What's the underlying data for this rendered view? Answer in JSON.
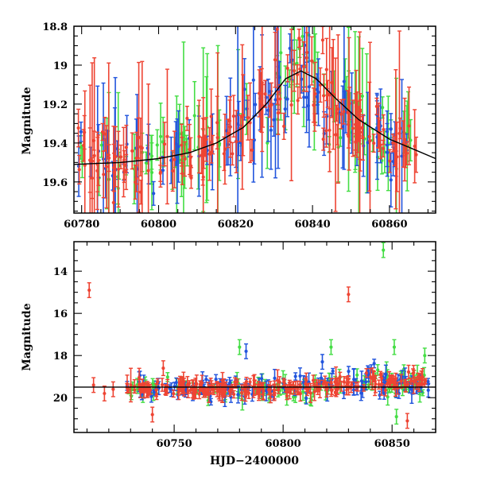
{
  "chart_data": [
    {
      "type": "scatter",
      "panel": "top",
      "xlabel": "",
      "ylabel": "Magnitude",
      "xlim": [
        60778,
        60872
      ],
      "ylim": [
        19.76,
        18.8
      ],
      "y_inverted": true,
      "x_ticks": [
        "60780",
        "60800",
        "60820",
        "60840",
        "60860"
      ],
      "y_ticks": [
        "18.8",
        "19",
        "19.2",
        "19.4",
        "19.6"
      ],
      "grid": false,
      "legend": "none",
      "series": [
        {
          "color": "#2255dd",
          "marker": "point-with-errorbar"
        },
        {
          "color": "#44dd44",
          "marker": "point-with-errorbar"
        },
        {
          "color": "#ee4433",
          "marker": "point-with-errorbar"
        }
      ],
      "model_curve": {
        "color": "#000000",
        "x": [
          60778,
          60790,
          60800,
          60808,
          60815,
          60822,
          60828,
          60833,
          60837,
          60841,
          60846,
          60852,
          60860,
          60866,
          60872
        ],
        "y": [
          19.51,
          19.5,
          19.48,
          19.45,
          19.4,
          19.32,
          19.2,
          19.07,
          19.03,
          19.07,
          19.17,
          19.28,
          19.38,
          19.43,
          19.48
        ]
      },
      "envelope": {
        "x": [
          60780,
          60790,
          60800,
          60808,
          60815,
          60822,
          60828,
          60834,
          60838,
          60842,
          60848,
          60855,
          60862,
          60866
        ],
        "y": [
          19.45,
          19.5,
          19.47,
          19.44,
          19.38,
          19.3,
          19.2,
          19.05,
          19.02,
          19.12,
          19.25,
          19.35,
          19.4,
          19.42
        ]
      }
    },
    {
      "type": "scatter",
      "panel": "bottom",
      "xlabel": "HJD−2400000",
      "ylabel": "Magnitude",
      "xlim": [
        60704,
        60870
      ],
      "ylim": [
        21.65,
        12.6
      ],
      "y_inverted": true,
      "x_ticks": [
        "60750",
        "60800",
        "60850"
      ],
      "y_ticks": [
        "14",
        "16",
        "18",
        "20"
      ],
      "grid": false,
      "legend": "none",
      "series": [
        {
          "color": "#2255dd",
          "marker": "point-with-errorbar"
        },
        {
          "color": "#44dd44",
          "marker": "point-with-errorbar"
        },
        {
          "color": "#ee4433",
          "marker": "point-with-errorbar"
        }
      ],
      "baseline": {
        "color": "#000000",
        "y": 19.5
      },
      "outliers": [
        {
          "x": 60711,
          "y": 14.9,
          "color": "#ee4433"
        },
        {
          "x": 60830,
          "y": 15.1,
          "color": "#ee4433"
        },
        {
          "x": 60846,
          "y": 13.0,
          "color": "#44dd44"
        },
        {
          "x": 60783,
          "y": 17.8,
          "color": "#2255dd"
        },
        {
          "x": 60780,
          "y": 17.6,
          "color": "#44dd44"
        },
        {
          "x": 60822,
          "y": 17.6,
          "color": "#44dd44"
        },
        {
          "x": 60745,
          "y": 18.6,
          "color": "#ee4433"
        },
        {
          "x": 60818,
          "y": 18.3,
          "color": "#2255dd"
        },
        {
          "x": 60713,
          "y": 19.4,
          "color": "#ee4433"
        },
        {
          "x": 60718,
          "y": 19.8,
          "color": "#ee4433"
        },
        {
          "x": 60722,
          "y": 19.6,
          "color": "#ee4433"
        },
        {
          "x": 60740,
          "y": 20.8,
          "color": "#ee4433"
        },
        {
          "x": 60852,
          "y": 20.9,
          "color": "#44dd44"
        },
        {
          "x": 60857,
          "y": 21.1,
          "color": "#ee4433"
        },
        {
          "x": 60865,
          "y": 18.0,
          "color": "#44dd44"
        },
        {
          "x": 60851,
          "y": 17.6,
          "color": "#44dd44"
        }
      ]
    }
  ]
}
